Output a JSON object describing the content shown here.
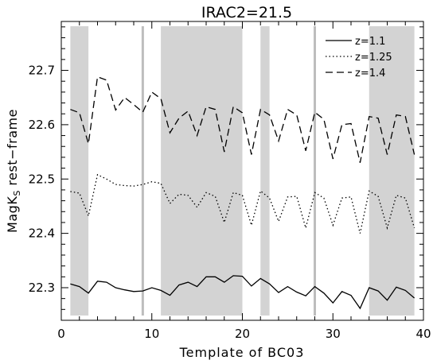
{
  "chart_data": {
    "type": "line",
    "title": "IRAC2=21.5",
    "xlabel": "Template of BC03",
    "ylabel": {
      "main": "MagK",
      "sub": "S",
      "rest": " rest−frame"
    },
    "xlim": [
      0,
      40
    ],
    "ylim": [
      22.24,
      22.79
    ],
    "x_ticks": [
      0,
      10,
      20,
      30,
      40
    ],
    "x_tick_labels": [
      "0",
      "10",
      "20",
      "30",
      "40"
    ],
    "y_ticks": [
      22.3,
      22.4,
      22.5,
      22.6,
      22.7
    ],
    "y_tick_labels": [
      "22.3",
      "22.4",
      "22.5",
      "22.6",
      "22.7"
    ],
    "x_minor_step": 2,
    "y_minor_step": 0.02,
    "grid": false,
    "legend_position": "top-right",
    "shaded_bands": [
      [
        1,
        3
      ],
      [
        11,
        20
      ],
      [
        22,
        23
      ],
      [
        34,
        39
      ]
    ],
    "vertical_lines": [
      9,
      28
    ],
    "colors": {
      "line": "#000000",
      "band": "#d3d3d3",
      "vline": "#bdbdbd"
    },
    "x": [
      1,
      2,
      3,
      4,
      5,
      6,
      7,
      8,
      9,
      10,
      11,
      12,
      13,
      14,
      15,
      16,
      17,
      18,
      19,
      20,
      21,
      22,
      23,
      24,
      25,
      26,
      27,
      28,
      29,
      30,
      31,
      32,
      33,
      34,
      35,
      36,
      37,
      38,
      39
    ],
    "series": [
      {
        "name": "z=1.1",
        "style": "solid",
        "values": [
          22.307,
          22.302,
          22.29,
          22.312,
          22.31,
          22.3,
          22.296,
          22.293,
          22.294,
          22.3,
          22.295,
          22.286,
          22.305,
          22.31,
          22.302,
          22.32,
          22.32,
          22.31,
          22.322,
          22.321,
          22.303,
          22.317,
          22.307,
          22.291,
          22.302,
          22.292,
          22.285,
          22.302,
          22.29,
          22.272,
          22.293,
          22.286,
          22.262,
          22.3,
          22.294,
          22.277,
          22.301,
          22.295,
          22.281
        ]
      },
      {
        "name": "z=1.25",
        "style": "dotted",
        "values": [
          22.477,
          22.474,
          22.432,
          22.508,
          22.5,
          22.49,
          22.488,
          22.487,
          22.49,
          22.495,
          22.492,
          22.455,
          22.472,
          22.47,
          22.448,
          22.475,
          22.468,
          22.42,
          22.475,
          22.47,
          22.415,
          22.478,
          22.465,
          22.422,
          22.467,
          22.468,
          22.41,
          22.475,
          22.465,
          22.415,
          22.465,
          22.467,
          22.4,
          22.478,
          22.468,
          22.41,
          22.47,
          22.465,
          22.41
        ]
      },
      {
        "name": "z=1.4",
        "style": "dashed",
        "values": [
          22.628,
          22.622,
          22.565,
          22.688,
          22.682,
          22.627,
          22.65,
          22.637,
          22.623,
          22.66,
          22.648,
          22.585,
          22.612,
          22.625,
          22.58,
          22.633,
          22.628,
          22.55,
          22.633,
          22.622,
          22.545,
          22.628,
          22.618,
          22.57,
          22.628,
          22.618,
          22.552,
          22.623,
          22.61,
          22.537,
          22.6,
          22.602,
          22.53,
          22.615,
          22.612,
          22.545,
          22.618,
          22.615,
          22.545
        ]
      }
    ]
  }
}
